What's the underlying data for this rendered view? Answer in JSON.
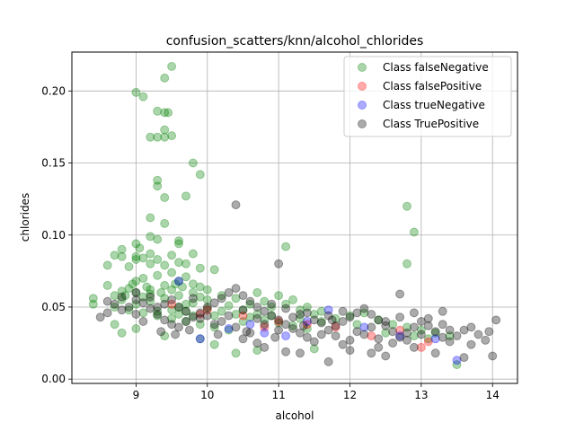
{
  "chart_data": {
    "type": "scatter",
    "title": "confusion_scatters/knn/alcohol_chlorides",
    "xlabel": "alcohol",
    "ylabel": "chlorides",
    "xlim": [
      8.1,
      14.35
    ],
    "ylim": [
      -0.003,
      0.227
    ],
    "xticks": [
      9,
      10,
      11,
      12,
      13,
      14
    ],
    "yticks": [
      0.0,
      0.05,
      0.1,
      0.15,
      0.2
    ],
    "ytick_labels": [
      "0.00",
      "0.05",
      "0.10",
      "0.15",
      "0.20"
    ],
    "grid": true,
    "legend_position": "top-right",
    "series": [
      {
        "name": "Class falseNegative",
        "color": "#008000",
        "points": [
          [
            9.0,
            0.199
          ],
          [
            9.1,
            0.196
          ],
          [
            9.5,
            0.217
          ],
          [
            9.4,
            0.209
          ],
          [
            9.3,
            0.186
          ],
          [
            9.4,
            0.185
          ],
          [
            9.2,
            0.168
          ],
          [
            9.3,
            0.168
          ],
          [
            9.4,
            0.173
          ],
          [
            9.5,
            0.169
          ],
          [
            9.4,
            0.168
          ],
          [
            9.45,
            0.185
          ],
          [
            9.8,
            0.15
          ],
          [
            9.9,
            0.142
          ],
          [
            9.3,
            0.138
          ],
          [
            9.3,
            0.134
          ],
          [
            9.4,
            0.126
          ],
          [
            9.7,
            0.127
          ],
          [
            9.2,
            0.112
          ],
          [
            9.4,
            0.108
          ],
          [
            9.2,
            0.099
          ],
          [
            9.3,
            0.097
          ],
          [
            9.6,
            0.096
          ],
          [
            9.6,
            0.094
          ],
          [
            9.0,
            0.094
          ],
          [
            9.05,
            0.091
          ],
          [
            8.8,
            0.09
          ],
          [
            8.7,
            0.086
          ],
          [
            8.8,
            0.085
          ],
          [
            9.0,
            0.085
          ],
          [
            9.1,
            0.084
          ],
          [
            9.2,
            0.087
          ],
          [
            9.5,
            0.086
          ],
          [
            9.8,
            0.087
          ],
          [
            9.0,
            0.083
          ],
          [
            9.3,
            0.083
          ],
          [
            9.6,
            0.081
          ],
          [
            9.7,
            0.08
          ],
          [
            9.4,
            0.079
          ],
          [
            9.2,
            0.08
          ],
          [
            9.9,
            0.077
          ],
          [
            10.1,
            0.076
          ],
          [
            8.6,
            0.079
          ],
          [
            8.9,
            0.078
          ],
          [
            8.4,
            0.056
          ],
          [
            8.4,
            0.052
          ],
          [
            8.6,
            0.065
          ],
          [
            8.7,
            0.058
          ],
          [
            8.8,
            0.061
          ],
          [
            8.9,
            0.063
          ],
          [
            9.0,
            0.068
          ],
          [
            9.1,
            0.07
          ],
          [
            9.3,
            0.072
          ],
          [
            9.5,
            0.074
          ],
          [
            9.7,
            0.071
          ],
          [
            9.8,
            0.066
          ],
          [
            9.9,
            0.064
          ],
          [
            9.6,
            0.068
          ],
          [
            9.4,
            0.065
          ],
          [
            9.2,
            0.062
          ],
          [
            9.0,
            0.06
          ],
          [
            8.8,
            0.055
          ],
          [
            8.7,
            0.05
          ],
          [
            8.9,
            0.048
          ],
          [
            9.1,
            0.046
          ],
          [
            9.3,
            0.044
          ],
          [
            9.5,
            0.042
          ],
          [
            9.7,
            0.04
          ],
          [
            9.9,
            0.038
          ],
          [
            10.1,
            0.036
          ],
          [
            10.3,
            0.034
          ],
          [
            10.5,
            0.04
          ],
          [
            10.7,
            0.045
          ],
          [
            10.9,
            0.05
          ],
          [
            11.1,
            0.052
          ],
          [
            11.3,
            0.048
          ],
          [
            11.5,
            0.045
          ],
          [
            10.0,
            0.055
          ],
          [
            10.2,
            0.058
          ],
          [
            10.4,
            0.056
          ],
          [
            10.6,
            0.052
          ],
          [
            10.8,
            0.054
          ],
          [
            11.0,
            0.058
          ],
          [
            11.2,
            0.055
          ],
          [
            11.4,
            0.05
          ],
          [
            9.0,
            0.052
          ],
          [
            9.2,
            0.054
          ],
          [
            9.4,
            0.056
          ],
          [
            9.6,
            0.058
          ],
          [
            9.8,
            0.053
          ],
          [
            10.0,
            0.049
          ],
          [
            10.2,
            0.047
          ],
          [
            10.4,
            0.045
          ],
          [
            10.6,
            0.043
          ],
          [
            10.8,
            0.041
          ],
          [
            11.0,
            0.039
          ],
          [
            11.2,
            0.037
          ],
          [
            11.4,
            0.035
          ],
          [
            11.6,
            0.04
          ],
          [
            11.8,
            0.042
          ],
          [
            12.0,
            0.044
          ],
          [
            12.2,
            0.046
          ],
          [
            12.4,
            0.041
          ],
          [
            12.6,
            0.038
          ],
          [
            12.8,
            0.036
          ],
          [
            13.0,
            0.034
          ],
          [
            13.2,
            0.032
          ],
          [
            13.4,
            0.03
          ],
          [
            13.5,
            0.01
          ],
          [
            11.1,
            0.092
          ],
          [
            12.8,
            0.12
          ],
          [
            12.9,
            0.102
          ],
          [
            12.8,
            0.08
          ],
          [
            8.7,
            0.038
          ],
          [
            8.8,
            0.032
          ],
          [
            9.0,
            0.035
          ],
          [
            9.4,
            0.03
          ],
          [
            9.9,
            0.028
          ],
          [
            10.1,
            0.024
          ],
          [
            10.4,
            0.018
          ],
          [
            10.7,
            0.02
          ],
          [
            11.5,
            0.021
          ],
          [
            9.5,
            0.048
          ],
          [
            9.6,
            0.05
          ],
          [
            9.7,
            0.047
          ],
          [
            9.8,
            0.044
          ],
          [
            9.1,
            0.057
          ],
          [
            9.2,
            0.059
          ],
          [
            9.3,
            0.047
          ],
          [
            9.5,
            0.062
          ],
          [
            9.6,
            0.045
          ],
          [
            9.7,
            0.052
          ],
          [
            9.8,
            0.06
          ],
          [
            9.9,
            0.057
          ],
          [
            10.0,
            0.062
          ],
          [
            10.1,
            0.044
          ],
          [
            10.3,
            0.051
          ],
          [
            10.5,
            0.048
          ],
          [
            10.7,
            0.06
          ],
          [
            10.9,
            0.044
          ],
          [
            11.3,
            0.042
          ],
          [
            11.6,
            0.047
          ],
          [
            12.1,
            0.038
          ],
          [
            12.5,
            0.032
          ],
          [
            12.9,
            0.03
          ],
          [
            13.1,
            0.028
          ],
          [
            9.55,
            0.066
          ],
          [
            9.65,
            0.064
          ],
          [
            9.35,
            0.06
          ],
          [
            9.15,
            0.064
          ],
          [
            8.95,
            0.066
          ],
          [
            8.85,
            0.058
          ]
        ]
      },
      {
        "name": "Class falsePositive",
        "color": "#ff0000",
        "points": [
          [
            9.5,
            0.052
          ],
          [
            10.0,
            0.048
          ],
          [
            10.5,
            0.044
          ],
          [
            11.0,
            0.04
          ],
          [
            11.4,
            0.038
          ],
          [
            11.8,
            0.036
          ],
          [
            12.3,
            0.03
          ],
          [
            12.7,
            0.034
          ],
          [
            13.0,
            0.022
          ],
          [
            13.1,
            0.026
          ],
          [
            9.9,
            0.045
          ],
          [
            10.8,
            0.036
          ]
        ]
      },
      {
        "name": "Class trueNegative",
        "color": "#0000ff",
        "points": [
          [
            9.6,
            0.068
          ],
          [
            9.9,
            0.028
          ],
          [
            10.3,
            0.035
          ],
          [
            10.6,
            0.038
          ],
          [
            11.1,
            0.03
          ],
          [
            11.4,
            0.04
          ],
          [
            11.7,
            0.048
          ],
          [
            12.2,
            0.036
          ],
          [
            12.7,
            0.03
          ],
          [
            13.2,
            0.028
          ],
          [
            13.5,
            0.013
          ],
          [
            10.8,
            0.032
          ]
        ]
      },
      {
        "name": "Class TruePositive",
        "color": "#000000",
        "points": [
          [
            8.5,
            0.043
          ],
          [
            8.6,
            0.046
          ],
          [
            8.7,
            0.052
          ],
          [
            8.8,
            0.057
          ],
          [
            8.9,
            0.05
          ],
          [
            9.0,
            0.055
          ],
          [
            9.1,
            0.053
          ],
          [
            9.2,
            0.049
          ],
          [
            9.3,
            0.045
          ],
          [
            9.4,
            0.041
          ],
          [
            9.5,
            0.038
          ],
          [
            9.6,
            0.036
          ],
          [
            9.7,
            0.04
          ],
          [
            9.8,
            0.043
          ],
          [
            9.9,
            0.046
          ],
          [
            10.0,
            0.05
          ],
          [
            10.1,
            0.053
          ],
          [
            10.2,
            0.056
          ],
          [
            10.3,
            0.06
          ],
          [
            10.4,
            0.063
          ],
          [
            10.5,
            0.058
          ],
          [
            10.6,
            0.054
          ],
          [
            10.7,
            0.05
          ],
          [
            10.8,
            0.047
          ],
          [
            10.9,
            0.044
          ],
          [
            11.0,
            0.041
          ],
          [
            11.1,
            0.038
          ],
          [
            11.2,
            0.035
          ],
          [
            11.3,
            0.032
          ],
          [
            11.4,
            0.029
          ],
          [
            11.5,
            0.026
          ],
          [
            11.6,
            0.031
          ],
          [
            11.7,
            0.034
          ],
          [
            11.8,
            0.037
          ],
          [
            11.9,
            0.04
          ],
          [
            12.0,
            0.043
          ],
          [
            12.1,
            0.046
          ],
          [
            12.2,
            0.049
          ],
          [
            12.3,
            0.045
          ],
          [
            12.4,
            0.041
          ],
          [
            12.5,
            0.037
          ],
          [
            12.6,
            0.033
          ],
          [
            12.7,
            0.029
          ],
          [
            12.8,
            0.032
          ],
          [
            12.9,
            0.036
          ],
          [
            13.0,
            0.04
          ],
          [
            13.1,
            0.037
          ],
          [
            13.2,
            0.033
          ],
          [
            13.3,
            0.029
          ],
          [
            13.4,
            0.026
          ],
          [
            13.5,
            0.03
          ],
          [
            13.6,
            0.034
          ],
          [
            13.7,
            0.036
          ],
          [
            13.8,
            0.031
          ],
          [
            13.9,
            0.027
          ],
          [
            14.0,
            0.016
          ],
          [
            14.05,
            0.041
          ],
          [
            13.95,
            0.033
          ],
          [
            13.7,
            0.024
          ],
          [
            13.3,
            0.047
          ],
          [
            12.7,
            0.059
          ],
          [
            11.0,
            0.08
          ],
          [
            10.4,
            0.121
          ],
          [
            11.7,
            0.012
          ],
          [
            11.3,
            0.018
          ],
          [
            11.1,
            0.019
          ],
          [
            10.8,
            0.022
          ],
          [
            12.0,
            0.02
          ],
          [
            12.3,
            0.018
          ],
          [
            12.5,
            0.016
          ],
          [
            13.2,
            0.018
          ],
          [
            13.6,
            0.015
          ],
          [
            10.5,
            0.028
          ],
          [
            10.7,
            0.025
          ],
          [
            11.9,
            0.024
          ],
          [
            12.4,
            0.022
          ],
          [
            12.9,
            0.022
          ],
          [
            9.0,
            0.045
          ],
          [
            9.1,
            0.04
          ],
          [
            9.3,
            0.05
          ],
          [
            9.5,
            0.055
          ],
          [
            9.7,
            0.047
          ],
          [
            9.9,
            0.042
          ],
          [
            10.1,
            0.038
          ],
          [
            10.3,
            0.044
          ],
          [
            10.5,
            0.048
          ],
          [
            10.7,
            0.042
          ],
          [
            10.9,
            0.052
          ],
          [
            11.1,
            0.049
          ],
          [
            11.3,
            0.045
          ],
          [
            11.5,
            0.041
          ],
          [
            11.7,
            0.044
          ],
          [
            11.9,
            0.047
          ],
          [
            12.1,
            0.033
          ],
          [
            12.3,
            0.036
          ],
          [
            12.5,
            0.04
          ],
          [
            12.7,
            0.043
          ],
          [
            12.9,
            0.046
          ],
          [
            13.1,
            0.042
          ],
          [
            13.3,
            0.038
          ],
          [
            8.6,
            0.054
          ],
          [
            8.8,
            0.048
          ],
          [
            9.0,
            0.06
          ],
          [
            9.2,
            0.057
          ],
          [
            9.4,
            0.052
          ],
          [
            9.6,
            0.05
          ],
          [
            9.8,
            0.056
          ],
          [
            10.0,
            0.044
          ],
          [
            10.2,
            0.04
          ],
          [
            10.4,
            0.036
          ],
          [
            10.6,
            0.032
          ],
          [
            10.8,
            0.038
          ],
          [
            11.0,
            0.034
          ],
          [
            11.2,
            0.043
          ],
          [
            11.4,
            0.046
          ],
          [
            11.6,
            0.039
          ],
          [
            11.8,
            0.03
          ],
          [
            12.0,
            0.027
          ],
          [
            12.2,
            0.031
          ],
          [
            12.4,
            0.028
          ],
          [
            12.6,
            0.025
          ],
          [
            12.8,
            0.027
          ],
          [
            13.0,
            0.031
          ],
          [
            13.4,
            0.034
          ],
          [
            9.35,
            0.033
          ],
          [
            9.55,
            0.031
          ],
          [
            9.75,
            0.034
          ],
          [
            10.15,
            0.031
          ],
          [
            10.55,
            0.033
          ],
          [
            10.95,
            0.029
          ],
          [
            11.35,
            0.037
          ],
          [
            11.75,
            0.041
          ]
        ]
      }
    ]
  }
}
